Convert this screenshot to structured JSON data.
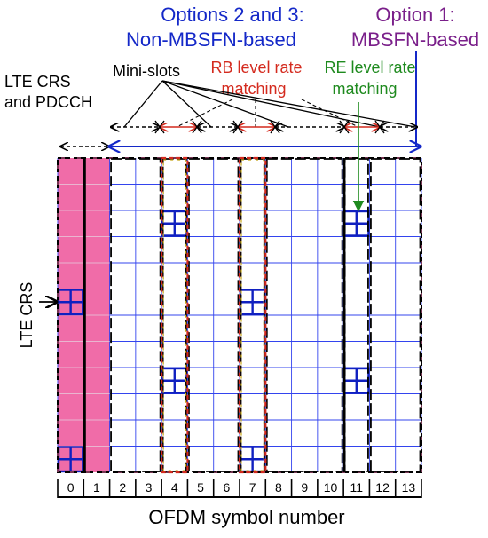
{
  "labels": {
    "options_23_line1": "Options 2 and 3:",
    "options_23_line2": "Non-MBSFN-based",
    "option_1_line1": "Option 1:",
    "option_1_line2": "MBSFN-based",
    "lte_crs_pdcch_line1": "LTE CRS",
    "lte_crs_pdcch_line2": "and PDCCH",
    "mini_slots": "Mini-slots",
    "rb_level_line1": "RB level rate",
    "rb_level_line2": "matching",
    "re_level_line1": "RE level rate",
    "re_level_line2": "matching",
    "lte_crs_side": "LTE CRS",
    "x_axis_title": "OFDM symbol number"
  },
  "symbols": [
    "0",
    "1",
    "2",
    "3",
    "4",
    "5",
    "6",
    "7",
    "8",
    "9",
    "10",
    "11",
    "12",
    "13"
  ],
  "grid": {
    "columns": 14,
    "rows": 12
  },
  "lte_region_columns": [
    0,
    1
  ],
  "minislot_columns": [
    4,
    7,
    11
  ],
  "crs_cells": [
    {
      "col": 0,
      "row": 5
    },
    {
      "col": 0,
      "row": 11
    },
    {
      "col": 4,
      "row": 2
    },
    {
      "col": 4,
      "row": 8
    },
    {
      "col": 7,
      "row": 5
    },
    {
      "col": 7,
      "row": 11
    },
    {
      "col": 11,
      "row": 2
    },
    {
      "col": 11,
      "row": 8
    }
  ],
  "colors": {
    "options_blue": "#1428c8",
    "option1_purple": "#7a1f8a",
    "rb_red": "#d42a1e",
    "re_green": "#1e8a1e",
    "lte_pink": "#f06ca8",
    "grid_blue": "#3344ee",
    "crs_blue": "#1020c0"
  }
}
